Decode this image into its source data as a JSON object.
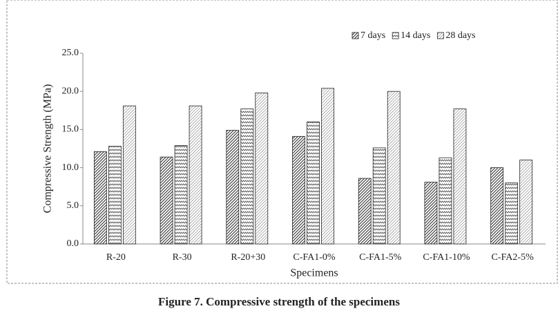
{
  "chart_data": {
    "type": "bar",
    "caption": "Figure 7. Compressive strength of the specimens",
    "xlabel": "Specimens",
    "ylabel": "Compressive  Strength (MPa)",
    "categories": [
      "R-20",
      "R-30",
      "R-20+30",
      "C-FA1-0%",
      "C-FA1-5%",
      "C-FA1-10%",
      "C-FA2-5%"
    ],
    "series": [
      {
        "name": "7 days",
        "color": "#333333",
        "values": [
          12.1,
          11.4,
          14.9,
          14.1,
          8.6,
          8.1,
          10.0
        ]
      },
      {
        "name": "14 days",
        "color": "#555555",
        "values": [
          12.8,
          12.9,
          17.7,
          16.0,
          12.6,
          11.3,
          8.0
        ]
      },
      {
        "name": "28 days",
        "color": "#666666",
        "values": [
          18.1,
          18.1,
          19.8,
          20.4,
          20.0,
          17.7,
          11.0
        ]
      }
    ],
    "ylim": [
      0,
      25
    ],
    "yticks": [
      {
        "value": 0,
        "label": "0.0"
      },
      {
        "value": 5,
        "label": "5.0"
      },
      {
        "value": 10,
        "label": "10.0"
      },
      {
        "value": 15,
        "label": "15.0"
      },
      {
        "value": 20,
        "label": "20.0"
      },
      {
        "value": 25,
        "label": "25.0"
      }
    ],
    "legend": "top-right",
    "grid": false
  }
}
